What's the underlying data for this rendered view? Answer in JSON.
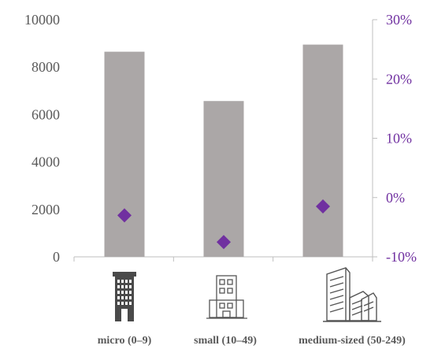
{
  "chart_data": {
    "type": "bar",
    "categories": [
      "micro (0–9)",
      "small (10–49)",
      "medium-sized (50-249)"
    ],
    "series": [
      {
        "values": [
          8650,
          6570,
          8950
        ],
        "axis": "left",
        "mark": "bar",
        "color": "#aba7a7"
      },
      {
        "values": [
          -3.0,
          -7.5,
          -1.5
        ],
        "axis": "right",
        "mark": "diamond",
        "unit": "%",
        "color": "#7030a0"
      }
    ],
    "y_left": {
      "lim": [
        0,
        10000
      ],
      "ticks": [
        "0",
        "2000",
        "4000",
        "6000",
        "8000",
        "10000"
      ]
    },
    "y_right": {
      "lim": [
        -10,
        30
      ],
      "ticks": [
        "-10%",
        "0%",
        "10%",
        "20%",
        "30%"
      ]
    },
    "grid": false,
    "legend": "none",
    "category_icons": [
      "narrow-office-tower-icon",
      "small-office-building-icon",
      "office-building-cluster-icon"
    ]
  }
}
